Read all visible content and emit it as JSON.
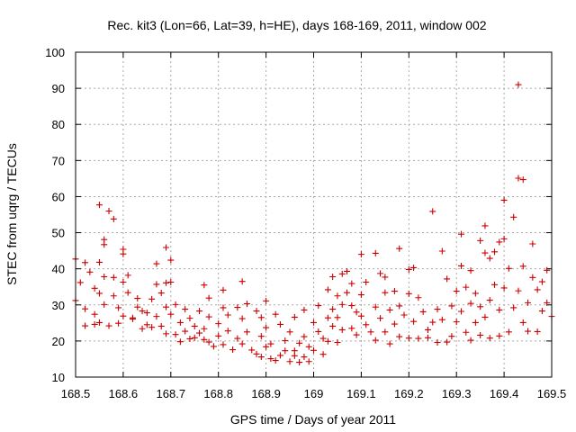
{
  "chart_data": {
    "type": "scatter",
    "title": "Rec. kit3 (Lon=66, Lat=39, h=HE), days 168-169, 2011, window 002",
    "xlabel": "GPS time / Days of year 2011",
    "ylabel": "STEC from uqrg / TECUs",
    "xlim": [
      168.5,
      169.5
    ],
    "ylim": [
      10,
      100
    ],
    "xticks": [
      168.5,
      168.6,
      168.7,
      168.8,
      168.9,
      169,
      169.1,
      169.2,
      169.3,
      169.4,
      169.5
    ],
    "xtick_labels": [
      "168.5",
      "168.6",
      "168.7",
      "168.8",
      "168.9",
      "169",
      "169.1",
      "169.2",
      "169.3",
      "169.4",
      "169.5"
    ],
    "yticks": [
      10,
      20,
      30,
      40,
      50,
      60,
      70,
      80,
      90,
      100
    ],
    "ytick_labels": [
      "10",
      "20",
      "30",
      "40",
      "50",
      "60",
      "70",
      "80",
      "90",
      "100"
    ],
    "grid": true,
    "legend": "none",
    "marker": "plus",
    "color": "#cc0000",
    "series": [
      {
        "name": "STEC",
        "points": [
          [
            168.5,
            42.7
          ],
          [
            168.5,
            31.2
          ],
          [
            168.51,
            36.2
          ],
          [
            168.52,
            41.7
          ],
          [
            168.52,
            28.9
          ],
          [
            168.52,
            24.2
          ],
          [
            168.53,
            39.1
          ],
          [
            168.54,
            34.6
          ],
          [
            168.54,
            27.4
          ],
          [
            168.54,
            24.6
          ],
          [
            168.55,
            57.7
          ],
          [
            168.55,
            41.8
          ],
          [
            168.55,
            33.2
          ],
          [
            168.55,
            25.1
          ],
          [
            168.56,
            48.1
          ],
          [
            168.56,
            46.7
          ],
          [
            168.56,
            37.8
          ],
          [
            168.56,
            30.1
          ],
          [
            168.57,
            56.0
          ],
          [
            168.57,
            24.2
          ],
          [
            168.58,
            53.8
          ],
          [
            168.58,
            37.6
          ],
          [
            168.58,
            32.5
          ],
          [
            168.59,
            29.2
          ],
          [
            168.59,
            24.9
          ],
          [
            168.6,
            45.4
          ],
          [
            168.6,
            44.1
          ],
          [
            168.6,
            36.3
          ],
          [
            168.6,
            26.9
          ],
          [
            168.61,
            38.2
          ],
          [
            168.61,
            33.4
          ],
          [
            168.62,
            26.4
          ],
          [
            168.62,
            26.1
          ],
          [
            168.63,
            31.8
          ],
          [
            168.63,
            29.4
          ],
          [
            168.64,
            28.3
          ],
          [
            168.64,
            23.4
          ],
          [
            168.65,
            24.5
          ],
          [
            168.65,
            27.8
          ],
          [
            168.66,
            31.6
          ],
          [
            168.66,
            23.8
          ],
          [
            168.67,
            41.4
          ],
          [
            168.67,
            35.7
          ],
          [
            168.67,
            26.8
          ],
          [
            168.68,
            33.3
          ],
          [
            168.68,
            24.1
          ],
          [
            168.69,
            45.9
          ],
          [
            168.69,
            36.1
          ],
          [
            168.69,
            29.4
          ],
          [
            168.69,
            22.0
          ],
          [
            168.7,
            42.4
          ],
          [
            168.7,
            36.3
          ],
          [
            168.7,
            27.4
          ],
          [
            168.71,
            30.1
          ],
          [
            168.71,
            21.8
          ],
          [
            168.72,
            25.1
          ],
          [
            168.72,
            19.8
          ],
          [
            168.73,
            28.8
          ],
          [
            168.73,
            22.7
          ],
          [
            168.74,
            26.3
          ],
          [
            168.74,
            20.6
          ],
          [
            168.75,
            24.1
          ],
          [
            168.75,
            20.9
          ],
          [
            168.76,
            28.3
          ],
          [
            168.76,
            22.2
          ],
          [
            168.77,
            35.5
          ],
          [
            168.77,
            23.4
          ],
          [
            168.77,
            20.4
          ],
          [
            168.78,
            31.9
          ],
          [
            168.78,
            26.7
          ],
          [
            168.78,
            19.7
          ],
          [
            168.79,
            18.5
          ],
          [
            168.8,
            24.8
          ],
          [
            168.8,
            21.4
          ],
          [
            168.81,
            34.1
          ],
          [
            168.81,
            29.2
          ],
          [
            168.81,
            19.0
          ],
          [
            168.82,
            27.2
          ],
          [
            168.82,
            22.8
          ],
          [
            168.83,
            17.6
          ],
          [
            168.84,
            29.3
          ],
          [
            168.84,
            20.7
          ],
          [
            168.85,
            36.5
          ],
          [
            168.85,
            26.2
          ],
          [
            168.85,
            19.2
          ],
          [
            168.86,
            30.3
          ],
          [
            168.86,
            22.5
          ],
          [
            168.87,
            17.5
          ],
          [
            168.88,
            28.3
          ],
          [
            168.88,
            16.4
          ],
          [
            168.89,
            26.5
          ],
          [
            168.89,
            21.3
          ],
          [
            168.89,
            15.6
          ],
          [
            168.9,
            31.1
          ],
          [
            168.9,
            23.7
          ],
          [
            168.9,
            18.4
          ],
          [
            168.91,
            15.1
          ],
          [
            168.91,
            19.2
          ],
          [
            168.92,
            27.4
          ],
          [
            168.92,
            14.6
          ],
          [
            168.93,
            24.6
          ],
          [
            168.93,
            16.0
          ],
          [
            168.94,
            17.3
          ],
          [
            168.94,
            20.1
          ],
          [
            168.95,
            22.5
          ],
          [
            168.95,
            14.3
          ],
          [
            168.96,
            26.6
          ],
          [
            168.96,
            17.3
          ],
          [
            168.96,
            15.9
          ],
          [
            168.97,
            19.4
          ],
          [
            168.97,
            14.1
          ],
          [
            168.98,
            28.6
          ],
          [
            168.98,
            21.2
          ],
          [
            168.98,
            15.6
          ],
          [
            168.99,
            18.4
          ],
          [
            168.99,
            14.3
          ],
          [
            169.0,
            25.1
          ],
          [
            169.0,
            17.4
          ],
          [
            169.01,
            29.8
          ],
          [
            169.01,
            22.6
          ],
          [
            169.02,
            20.7
          ],
          [
            169.02,
            16.3
          ],
          [
            169.03,
            34.2
          ],
          [
            169.03,
            26.4
          ],
          [
            169.03,
            19.9
          ],
          [
            169.04,
            37.8
          ],
          [
            169.04,
            28.8
          ],
          [
            169.04,
            24.1
          ],
          [
            169.05,
            32.5
          ],
          [
            169.05,
            26.5
          ],
          [
            169.05,
            19.6
          ],
          [
            169.06,
            38.6
          ],
          [
            169.06,
            30.1
          ],
          [
            169.06,
            23.1
          ],
          [
            169.07,
            39.3
          ],
          [
            169.07,
            33.4
          ],
          [
            169.08,
            35.9
          ],
          [
            169.08,
            29.8
          ],
          [
            169.08,
            23.5
          ],
          [
            169.09,
            28.0
          ],
          [
            169.09,
            21.7
          ],
          [
            169.1,
            44.0
          ],
          [
            169.1,
            32.8
          ],
          [
            169.1,
            26.9
          ],
          [
            169.11,
            36.3
          ],
          [
            169.11,
            24.5
          ],
          [
            169.12,
            22.5
          ],
          [
            169.13,
            44.3
          ],
          [
            169.13,
            29.4
          ],
          [
            169.13,
            20.2
          ],
          [
            169.14,
            38.7
          ],
          [
            169.14,
            26.3
          ],
          [
            169.15,
            37.7
          ],
          [
            169.15,
            33.4
          ],
          [
            169.15,
            22.5
          ],
          [
            169.16,
            28.6
          ],
          [
            169.16,
            19.2
          ],
          [
            169.17,
            33.8
          ],
          [
            169.17,
            24.7
          ],
          [
            169.18,
            45.6
          ],
          [
            169.18,
            29.7
          ],
          [
            169.18,
            21.2
          ],
          [
            169.19,
            27.2
          ],
          [
            169.2,
            39.8
          ],
          [
            169.2,
            33.1
          ],
          [
            169.2,
            20.8
          ],
          [
            169.21,
            40.3
          ],
          [
            169.21,
            25.4
          ],
          [
            169.22,
            32.0
          ],
          [
            169.22,
            20.7
          ],
          [
            169.23,
            28.1
          ],
          [
            169.24,
            23.1
          ],
          [
            169.24,
            20.9
          ],
          [
            169.25,
            55.9
          ],
          [
            169.25,
            25.2
          ],
          [
            169.26,
            28.8
          ],
          [
            169.26,
            19.6
          ],
          [
            169.27,
            44.9
          ],
          [
            169.27,
            25.9
          ],
          [
            169.28,
            37.2
          ],
          [
            169.28,
            19.7
          ],
          [
            169.29,
            29.7
          ],
          [
            169.29,
            21.3
          ],
          [
            169.3,
            33.8
          ],
          [
            169.3,
            25.3
          ],
          [
            169.31,
            49.6
          ],
          [
            169.31,
            40.8
          ],
          [
            169.31,
            28.2
          ],
          [
            169.32,
            34.9
          ],
          [
            169.32,
            22.4
          ],
          [
            169.33,
            39.5
          ],
          [
            169.33,
            30.4
          ],
          [
            169.33,
            20.2
          ],
          [
            169.34,
            33.2
          ],
          [
            169.34,
            25.1
          ],
          [
            169.35,
            47.8
          ],
          [
            169.35,
            29.5
          ],
          [
            169.35,
            21.6
          ],
          [
            169.36,
            51.9
          ],
          [
            169.36,
            44.4
          ],
          [
            169.36,
            26.6
          ],
          [
            169.37,
            42.9
          ],
          [
            169.37,
            31.3
          ],
          [
            169.37,
            20.8
          ],
          [
            169.38,
            44.7
          ],
          [
            169.38,
            35.6
          ],
          [
            169.39,
            47.4
          ],
          [
            169.39,
            28.6
          ],
          [
            169.39,
            21.4
          ],
          [
            169.4,
            59.0
          ],
          [
            169.4,
            48.3
          ],
          [
            169.4,
            34.7
          ],
          [
            169.41,
            40.1
          ],
          [
            169.41,
            22.5
          ],
          [
            169.42,
            54.3
          ],
          [
            169.42,
            29.2
          ],
          [
            169.43,
            91.0
          ],
          [
            169.43,
            65.1
          ],
          [
            169.43,
            33.9
          ],
          [
            169.44,
            64.7
          ],
          [
            169.44,
            40.7
          ],
          [
            169.44,
            25.1
          ],
          [
            169.45,
            30.6
          ],
          [
            169.45,
            22.7
          ],
          [
            169.46,
            46.9
          ],
          [
            169.46,
            37.6
          ],
          [
            169.47,
            34.2
          ],
          [
            169.47,
            22.6
          ],
          [
            169.48,
            36.4
          ],
          [
            169.48,
            28.3
          ],
          [
            169.49,
            39.6
          ],
          [
            169.49,
            30.6
          ],
          [
            169.5,
            26.8
          ]
        ]
      }
    ]
  }
}
